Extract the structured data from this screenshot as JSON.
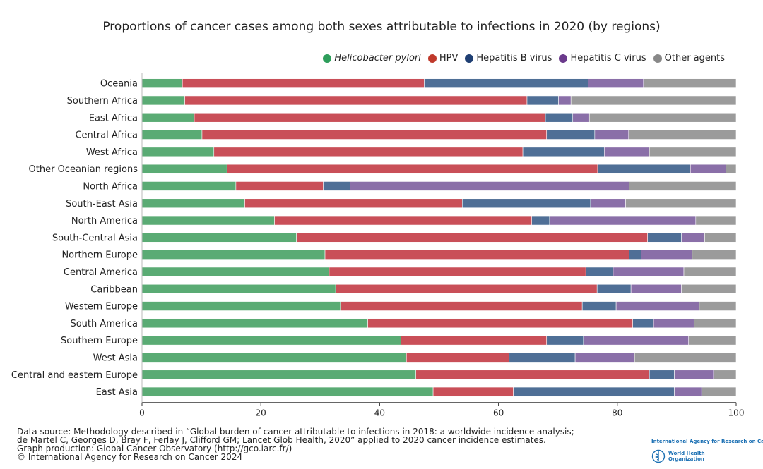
{
  "chart_data": {
    "type": "bar",
    "orientation": "horizontal",
    "stacked": true,
    "title": "Proportions of cancer cases among both sexes attributable to infections in 2020 (by regions)",
    "xlim": [
      0,
      100
    ],
    "xticks": [
      0,
      20,
      40,
      60,
      80,
      100
    ],
    "legend_position": "top-right",
    "categories": [
      "Oceania",
      "Southern Africa",
      "East Africa",
      "Central Africa",
      "West Africa",
      "Other Oceanian regions",
      "North Africa",
      "South-East Asia",
      "North America",
      "South-Central Asia",
      "Northern Europe",
      "Central America",
      "Caribbean",
      "Western Europe",
      "South America",
      "Southern Europe",
      "West Asia",
      "Central and eastern Europe",
      "East Asia"
    ],
    "series": [
      {
        "name": "Helicobacter pylori",
        "color": "#5aab74",
        "values": [
          6.8,
          7.2,
          8.8,
          10.1,
          12.1,
          14.3,
          15.8,
          17.3,
          22.3,
          26.0,
          30.8,
          31.5,
          32.6,
          33.4,
          38.0,
          43.6,
          44.5,
          46.1,
          49.0
        ]
      },
      {
        "name": "HPV",
        "color": "#c94f58",
        "values": [
          40.7,
          57.6,
          59.1,
          58.0,
          52.0,
          62.4,
          14.7,
          36.6,
          43.3,
          59.1,
          51.2,
          43.2,
          44.0,
          40.7,
          44.6,
          24.5,
          17.3,
          39.3,
          13.5
        ]
      },
      {
        "name": "Hepatitis B virus",
        "color": "#4f6f96",
        "values": [
          27.6,
          5.3,
          4.6,
          8.1,
          13.7,
          15.6,
          4.5,
          21.6,
          3.0,
          5.7,
          2.0,
          4.6,
          5.7,
          5.7,
          3.5,
          6.2,
          11.1,
          4.2,
          27.1
        ]
      },
      {
        "name": "Hepatitis C virus",
        "color": "#8a6fa8",
        "values": [
          9.3,
          2.1,
          2.8,
          5.7,
          7.6,
          6.0,
          47.0,
          5.9,
          24.6,
          3.9,
          8.6,
          11.9,
          8.5,
          14.0,
          6.8,
          17.7,
          10.0,
          6.6,
          4.6
        ]
      },
      {
        "name": "Other agents",
        "color": "#9b9b9b",
        "values": [
          15.6,
          27.8,
          24.7,
          18.1,
          14.6,
          1.7,
          18.0,
          18.6,
          6.8,
          5.3,
          7.4,
          8.8,
          9.2,
          6.2,
          7.1,
          8.0,
          17.1,
          3.8,
          5.8
        ]
      }
    ]
  },
  "legend": {
    "items": [
      {
        "label": "Helicobacter pylori",
        "color": "#2e9e5b",
        "italic": true
      },
      {
        "label": "HPV",
        "color": "#c0392b",
        "italic": false
      },
      {
        "label": "Hepatitis B virus",
        "color": "#1f3f73",
        "italic": false
      },
      {
        "label": "Hepatitis C virus",
        "color": "#6b3a8c",
        "italic": false
      },
      {
        "label": "Other agents",
        "color": "#888888",
        "italic": false
      }
    ]
  },
  "footer": {
    "line1": "Data source: Methodology described in “Global burden of cancer attributable to infections in 2018: a worldwide incidence analysis;",
    "line2": "de Martel C, Georges D, Bray F, Ferlay J, Clifford GM; Lancet Glob Health, 2020” applied to 2020 cancer incidence estimates.",
    "line3": "Graph production: Global Cancer Observatory (http://gco.iarc.fr/)",
    "line4": "© International Agency for Research on Cancer 2024"
  },
  "logos": {
    "iarc": "International Agency for Research on Cancer",
    "who_line1": "World Health",
    "who_line2": "Organization"
  }
}
